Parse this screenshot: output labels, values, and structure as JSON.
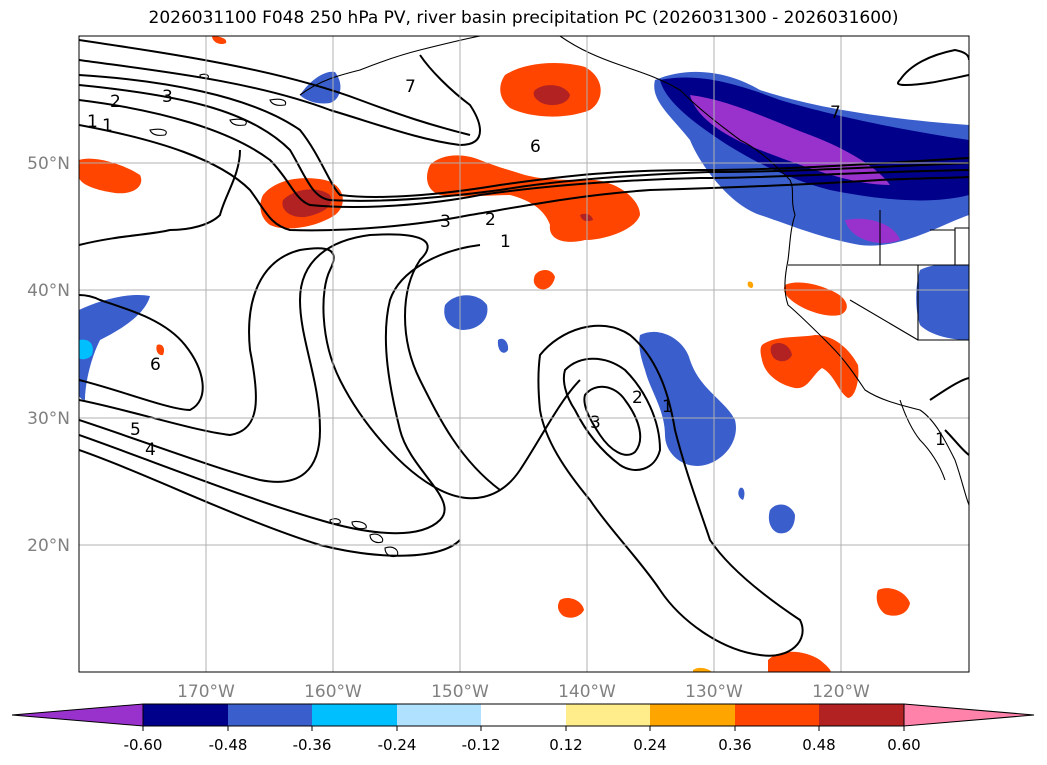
{
  "title": "2026031100 F048 250 hPa PV, river basin precipitation PC (2026031300 - 2026031600)",
  "map": {
    "projection": "PlateCarree",
    "lon_range": [
      -180,
      -110
    ],
    "lat_range": [
      10,
      60
    ],
    "lon_tick_labels": [
      "170°W",
      "160°W",
      "150°W",
      "140°W",
      "130°W",
      "120°W"
    ],
    "lat_tick_labels": [
      "50°N",
      "40°N",
      "30°N",
      "20°N"
    ],
    "grid": true,
    "tick_label_color": "#808080"
  },
  "contour_labels": [
    "2",
    "3",
    "1",
    "1",
    "6",
    "7",
    "6",
    "5",
    "4",
    "3",
    "2",
    "1",
    "3",
    "2",
    "1",
    "7",
    "1"
  ],
  "colorbar": {
    "ticks": [
      "-0.60",
      "-0.48",
      "-0.36",
      "-0.24",
      "-0.12",
      "0.12",
      "0.24",
      "0.36",
      "0.48",
      "0.60"
    ],
    "colors": [
      "#9932cc",
      "#00008b",
      "#3a5fcd",
      "#00bfff",
      "#b0e2ff",
      "#ffffff",
      "#ffec8b",
      "#ffa500",
      "#ff4500",
      "#b22222",
      "#ff82ab"
    ]
  }
}
